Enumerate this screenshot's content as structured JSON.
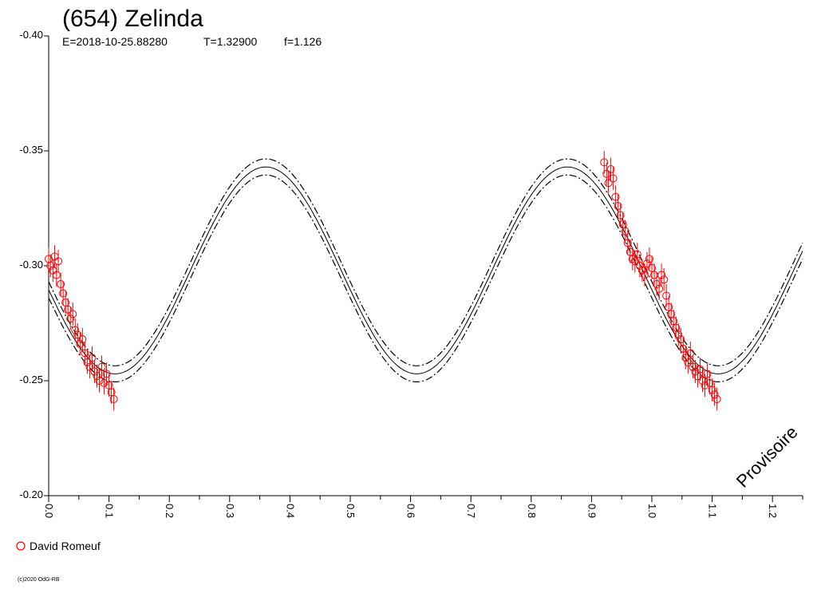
{
  "chart_data": {
    "type": "scatter",
    "title": "(654) Zelinda",
    "subtitle": {
      "epoch": "E=2018-10-25.88280",
      "period": "T=1.32900",
      "fourier": "f=1.126"
    },
    "xlabel": "",
    "ylabel": "",
    "xlim": [
      0.0,
      1.25
    ],
    "ylim": [
      -0.4,
      -0.2
    ],
    "y_inverted": true,
    "x_ticks": [
      "0.0",
      "0.1",
      "0.2",
      "0.3",
      "0.4",
      "0.5",
      "0.6",
      "0.7",
      "0.8",
      "0.9",
      "1.0",
      "1.1",
      "1.2"
    ],
    "x_tick_values": [
      0.0,
      0.1,
      0.2,
      0.3,
      0.4,
      0.5,
      0.6,
      0.7,
      0.8,
      0.9,
      1.0,
      1.1,
      1.2
    ],
    "y_ticks": [
      "-0.40",
      "-0.35",
      "-0.30",
      "-0.25",
      "-0.20"
    ],
    "y_tick_values": [
      -0.4,
      -0.35,
      -0.3,
      -0.25,
      -0.2
    ],
    "grid": false,
    "watermark": "Provisoire",
    "fit_curve": {
      "mean": -0.298,
      "amplitude": 0.045,
      "phase_of_max_brightness": 0.36,
      "cycles_per_phase_unit": 2,
      "band_offset": 0.0035,
      "color": "#000000"
    },
    "series": [
      {
        "name": "David Romeuf",
        "color": "#ff0000",
        "marker": "open-circle",
        "error": 0.005,
        "x": [
          0.0,
          0.003,
          0.007,
          0.01,
          0.013,
          0.016,
          0.02,
          0.024,
          0.028,
          0.032,
          0.036,
          0.04,
          0.044,
          0.048,
          0.052,
          0.056,
          0.06,
          0.064,
          0.068,
          0.072,
          0.076,
          0.08,
          0.084,
          0.088,
          0.092,
          0.096,
          0.1,
          0.104,
          0.108,
          0.921,
          0.925,
          0.928,
          0.932,
          0.936,
          0.94,
          0.944,
          0.948,
          0.952,
          0.956,
          0.96,
          0.964,
          0.968,
          0.972,
          0.976,
          0.98,
          0.984,
          0.988,
          0.992,
          0.996,
          1.0,
          1.004,
          1.008,
          1.012,
          1.016,
          1.02,
          1.024,
          1.028,
          1.032,
          1.036,
          1.04,
          1.044,
          1.048,
          1.052,
          1.056,
          1.06,
          1.064,
          1.068,
          1.072,
          1.076,
          1.08,
          1.084,
          1.088,
          1.092,
          1.096,
          1.1,
          1.104,
          1.108
        ],
        "y": [
          -0.303,
          -0.3,
          -0.298,
          -0.304,
          -0.296,
          -0.302,
          -0.292,
          -0.288,
          -0.284,
          -0.281,
          -0.277,
          -0.279,
          -0.272,
          -0.27,
          -0.266,
          -0.268,
          -0.262,
          -0.258,
          -0.256,
          -0.26,
          -0.254,
          -0.252,
          -0.25,
          -0.256,
          -0.249,
          -0.253,
          -0.248,
          -0.245,
          -0.242,
          -0.345,
          -0.34,
          -0.336,
          -0.342,
          -0.338,
          -0.33,
          -0.326,
          -0.322,
          -0.318,
          -0.315,
          -0.31,
          -0.306,
          -0.303,
          -0.302,
          -0.305,
          -0.3,
          -0.298,
          -0.296,
          -0.301,
          -0.303,
          -0.299,
          -0.296,
          -0.292,
          -0.29,
          -0.296,
          -0.294,
          -0.287,
          -0.282,
          -0.279,
          -0.276,
          -0.273,
          -0.27,
          -0.268,
          -0.264,
          -0.26,
          -0.258,
          -0.262,
          -0.256,
          -0.254,
          -0.252,
          -0.255,
          -0.25,
          -0.248,
          -0.253,
          -0.249,
          -0.246,
          -0.244,
          -0.242
        ]
      }
    ],
    "legend": {
      "placement": "bottom-left",
      "entries": [
        "David Romeuf"
      ]
    },
    "footer": "(c)2020 OdG-RB"
  }
}
